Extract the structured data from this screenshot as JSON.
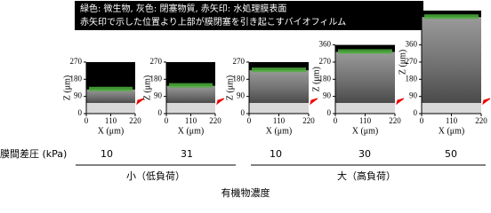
{
  "caption": [
    "緑色: 微生物, 灰色: 閉塞物質, 赤矢印: 水処理膜表面",
    "赤矢印で示した位置より上部が膜閉塞を引き起こすバイオフィルム"
  ],
  "panels": [
    {
      "yticks": [
        0,
        90,
        180,
        270
      ],
      "xticks": [
        0,
        110,
        220
      ],
      "ylabel": "Z (μm)",
      "xlabel": "X (μm)",
      "pressure": 10
    },
    {
      "yticks": [
        0,
        90,
        180,
        270
      ],
      "xticks": [
        0,
        110,
        220
      ],
      "ylabel": "Z (μm)",
      "xlabel": "X (μm)",
      "pressure": 31
    },
    {
      "yticks": [
        0,
        90,
        180,
        270
      ],
      "xticks": [
        0,
        110,
        220
      ],
      "ylabel": "Z (μm)",
      "xlabel": "X (μm)",
      "pressure": 10
    },
    {
      "yticks": [
        0,
        90,
        180,
        270,
        360
      ],
      "xticks": [
        0,
        110,
        220
      ],
      "ylabel": "Z (μm)",
      "xlabel": "X (μm)",
      "pressure": 30
    },
    {
      "yticks": [
        0,
        90,
        180,
        270,
        360,
        450,
        540
      ],
      "xticks": [
        0,
        110,
        220
      ],
      "ylabel": "Z (μm)",
      "xlabel": "X (μm)",
      "pressure": 50
    }
  ],
  "pressure_label": "膜間差圧 (kPa)",
  "groups": [
    "小（低負荷）",
    "大（高負荷）"
  ],
  "footer": "有機物濃度"
}
